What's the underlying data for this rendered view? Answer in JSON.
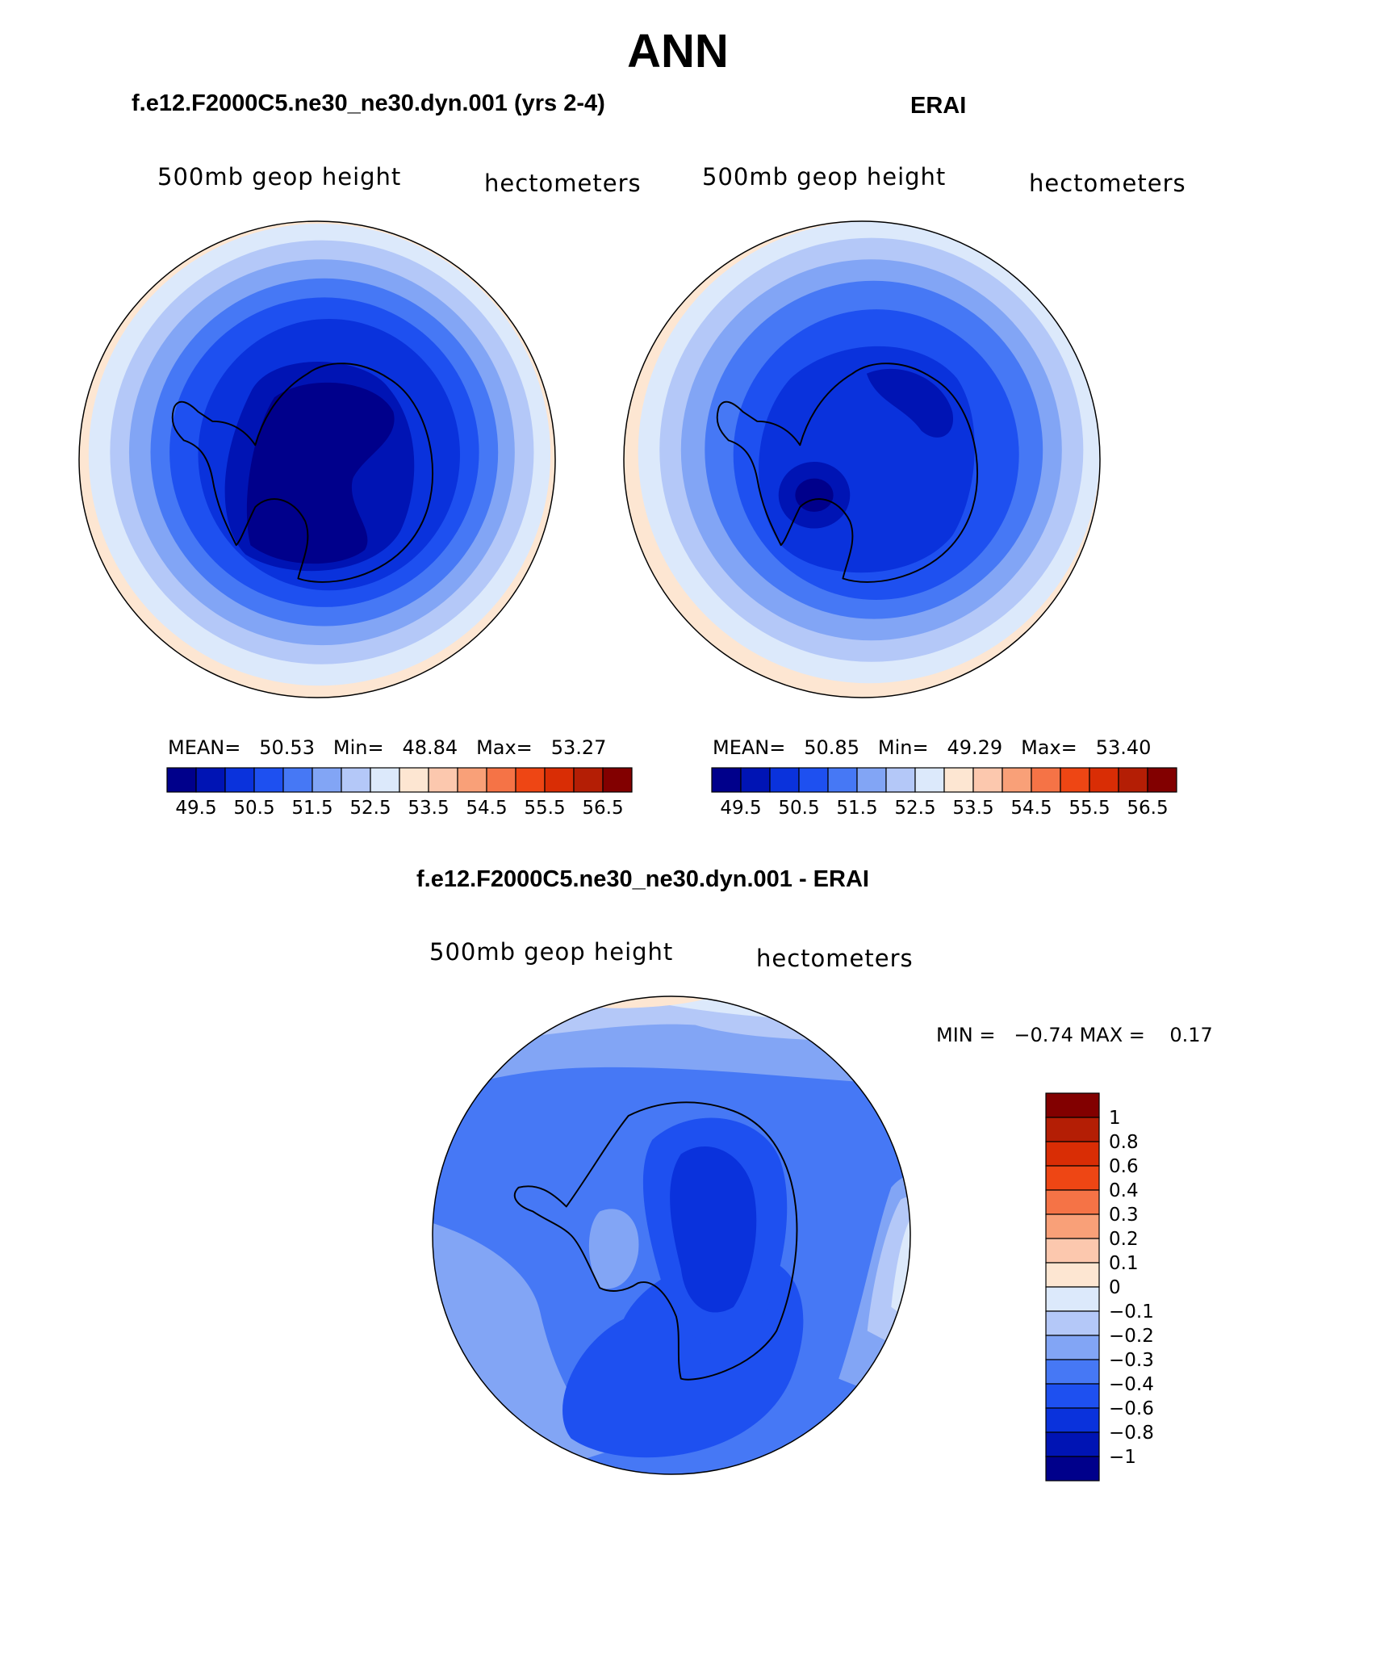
{
  "title": "ANN",
  "panels": [
    {
      "subtitle": "f.e12.F2000C5.ne30_ne30.dyn.001 (yrs 2-4)",
      "left_label": "500mb geop height",
      "right_label": "hectometers",
      "mean_label": "MEAN=",
      "mean_value": "50.53",
      "min_label": "Min=",
      "min_value": "48.84",
      "max_label": "Max=",
      "max_value": "53.27"
    },
    {
      "subtitle": "ERAI",
      "left_label": "500mb geop height",
      "right_label": "hectometers",
      "mean_label": "MEAN=",
      "mean_value": "50.85",
      "min_label": "Min=",
      "min_value": "49.29",
      "max_label": "Max=",
      "max_value": "53.40"
    }
  ],
  "diff_panel": {
    "subtitle": "f.e12.F2000C5.ne30_ne30.dyn.001 - ERAI",
    "left_label": "500mb geop height",
    "right_label": "hectometers",
    "min_label": "MIN =",
    "min_value": "−0.74",
    "max_label": "MAX =",
    "max_value": "0.17"
  },
  "colorbar_main": {
    "colors": [
      "#00008b",
      "#0014b4",
      "#0a32dc",
      "#1e50f0",
      "#4678f5",
      "#82a5f5",
      "#b4c8f8",
      "#dce9fb",
      "#fde6d2",
      "#fcc8ae",
      "#f9a078",
      "#f57346",
      "#ee4614",
      "#d92d05",
      "#b41e05",
      "#820000"
    ],
    "tick_labels": [
      "49.5",
      "50.5",
      "51.5",
      "52.5",
      "53.5",
      "54.5",
      "55.5",
      "56.5"
    ]
  },
  "colorbar_diff": {
    "colors": [
      "#820000",
      "#b41e05",
      "#d92d05",
      "#ee4614",
      "#f57346",
      "#f9a078",
      "#fcc8ae",
      "#fde6d2",
      "#dce9fb",
      "#b4c8f8",
      "#82a5f5",
      "#4678f5",
      "#1e50f0",
      "#0a32dc",
      "#0014b4",
      "#00008b"
    ],
    "tick_labels": [
      "1",
      "0.8",
      "0.6",
      "0.4",
      "0.3",
      "0.2",
      "0.1",
      "0",
      "−0.1",
      "−0.2",
      "−0.3",
      "−0.4",
      "−0.6",
      "−0.8",
      "−1"
    ]
  },
  "colors": {
    "coast": "#000000",
    "outline": "#000000"
  }
}
